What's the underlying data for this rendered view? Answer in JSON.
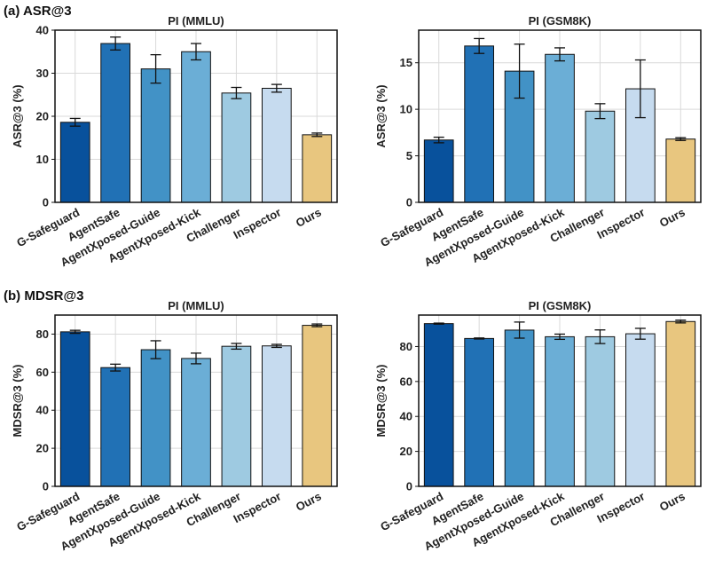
{
  "sections": [
    {
      "id": "a",
      "label": "(a) ASR@3"
    },
    {
      "id": "b",
      "label": "(b) MDSR@3"
    }
  ],
  "colors": [
    "#08519c",
    "#2171b5",
    "#4292c6",
    "#6baed6",
    "#9ecae1",
    "#c6dbef",
    "#e8c67f"
  ],
  "chart_data": [
    {
      "type": "bar",
      "section": "a",
      "title": "PI (MMLU)",
      "xlabel": "",
      "ylabel": "ASR@3 (%)",
      "ylim": [
        0,
        40
      ],
      "yticks": [
        0,
        10,
        20,
        30,
        40
      ],
      "grid": true,
      "categories": [
        "G-Safeguard",
        "AgentSafe",
        "AgentXposed-Guide",
        "AgentXposed-Kick",
        "Challenger",
        "Inspector",
        "Ours"
      ],
      "values": [
        18.6,
        36.9,
        31.0,
        35.0,
        25.4,
        26.5,
        15.7
      ],
      "errors": [
        0.9,
        1.5,
        3.3,
        1.9,
        1.3,
        0.9,
        0.4
      ]
    },
    {
      "type": "bar",
      "section": "a",
      "title": "PI (GSM8K)",
      "xlabel": "",
      "ylabel": "ASR@3 (%)",
      "ylim": [
        0,
        18.5
      ],
      "yticks": [
        0,
        5,
        10,
        15
      ],
      "grid": true,
      "categories": [
        "G-Safeguard",
        "AgentSafe",
        "AgentXposed-Guide",
        "AgentXposed-Kick",
        "Challenger",
        "Inspector",
        "Ours"
      ],
      "values": [
        6.7,
        16.8,
        14.1,
        15.9,
        9.8,
        12.2,
        6.8
      ],
      "errors": [
        0.3,
        0.8,
        2.9,
        0.7,
        0.8,
        3.1,
        0.15
      ]
    },
    {
      "type": "bar",
      "section": "b",
      "title": "PI (MMLU)",
      "xlabel": "",
      "ylabel": "MDSR@3 (%)",
      "ylim": [
        0,
        90
      ],
      "yticks": [
        0,
        20,
        40,
        60,
        80
      ],
      "grid": true,
      "categories": [
        "G-Safeguard",
        "AgentSafe",
        "AgentXposed-Guide",
        "AgentXposed-Kick",
        "Challenger",
        "Inspector",
        "Ours"
      ],
      "values": [
        81.2,
        62.4,
        71.8,
        67.2,
        73.6,
        73.8,
        84.6
      ],
      "errors": [
        0.8,
        1.8,
        4.7,
        2.8,
        1.5,
        0.8,
        0.7
      ]
    },
    {
      "type": "bar",
      "section": "b",
      "title": "PI (GSM8K)",
      "xlabel": "",
      "ylabel": "MDSR@3 (%)",
      "ylim": [
        0,
        98
      ],
      "yticks": [
        0,
        20,
        40,
        60,
        80
      ],
      "grid": true,
      "categories": [
        "G-Safeguard",
        "AgentSafe",
        "AgentXposed-Guide",
        "AgentXposed-Kick",
        "Challenger",
        "Inspector",
        "Ours"
      ],
      "values": [
        93.1,
        84.6,
        89.4,
        85.6,
        85.6,
        87.3,
        94.3
      ],
      "errors": [
        0.3,
        0.3,
        4.6,
        1.5,
        3.9,
        3.1,
        0.8
      ]
    }
  ]
}
